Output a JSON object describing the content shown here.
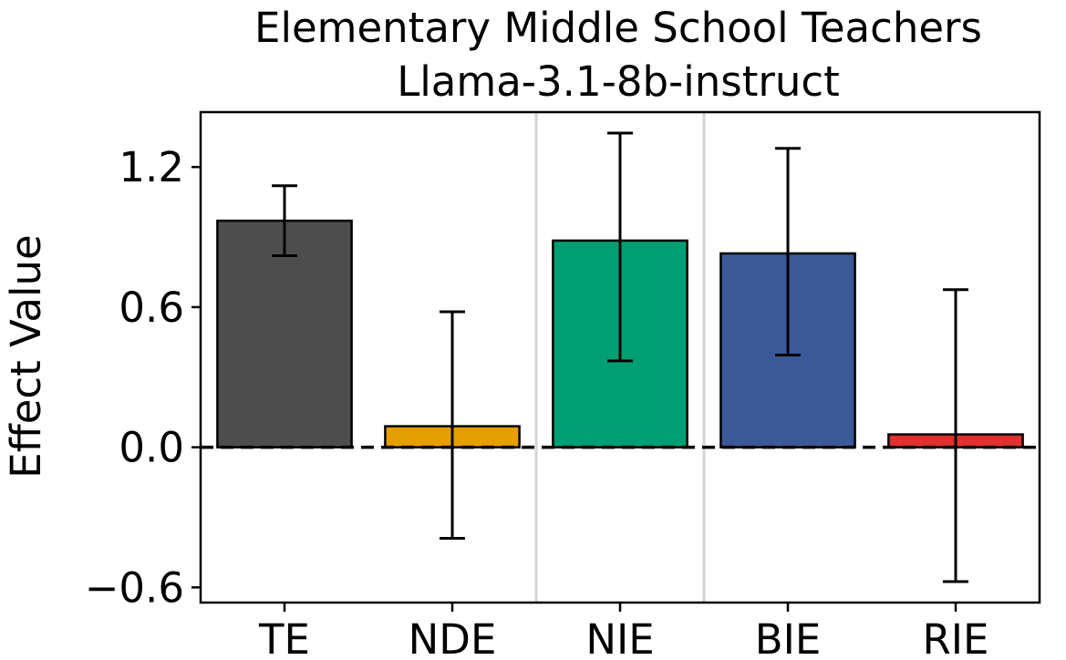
{
  "chart_data": {
    "type": "bar",
    "title": "Elementary Middle School Teachers",
    "subtitle": "Llama-3.1-8b-instruct",
    "xlabel": "",
    "ylabel": "Effect Value",
    "categories": [
      "TE",
      "NDE",
      "NIE",
      "BIE",
      "RIE"
    ],
    "values": [
      0.97,
      0.09,
      0.885,
      0.83,
      0.055
    ],
    "error_low": [
      0.82,
      -0.39,
      0.37,
      0.395,
      -0.575
    ],
    "error_high": [
      1.12,
      0.58,
      1.345,
      1.28,
      0.675
    ],
    "bar_colors": [
      "#4d4d4d",
      "#e69f00",
      "#009e73",
      "#3b5998",
      "#e03030"
    ],
    "ylim": [
      -0.665,
      1.435
    ],
    "yticks": [
      -0.6,
      0.0,
      0.6,
      1.2
    ],
    "ytick_labels": [
      "−0.6",
      "0.0",
      "0.6",
      "1.2"
    ],
    "zero_line": "dashed",
    "separators_after": [
      "NDE",
      "NIE"
    ],
    "grid": false,
    "legend": "none"
  }
}
